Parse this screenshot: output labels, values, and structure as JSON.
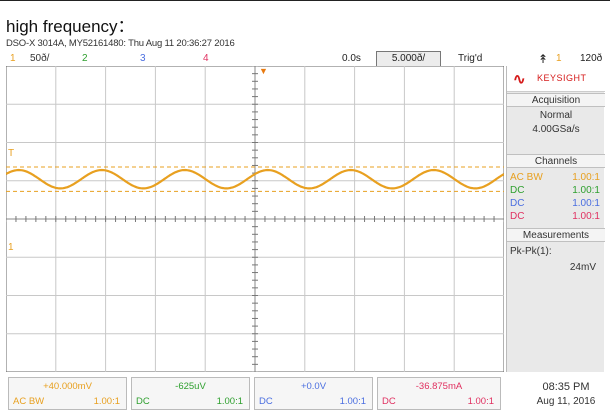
{
  "caption": "high frequency：",
  "info_line": "DSO-X 3014A, MY52161480: Thu Aug 11 20:36:27 2016",
  "header": {
    "channels": [
      {
        "num": "1",
        "scale": "50ð/",
        "color": "#e8a020"
      },
      {
        "num": "2",
        "scale": "",
        "color": "#2fa02f"
      },
      {
        "num": "3",
        "scale": "",
        "color": "#4a6ee0"
      },
      {
        "num": "4",
        "scale": "",
        "color": "#e03060"
      }
    ],
    "time_delay": "0.0s",
    "time_scale": "5.000ð/",
    "trig_status": "Trig'd",
    "trigger_icon": "trigger-edge-icon",
    "trig_channel": "1",
    "trig_level": "120ð"
  },
  "side_panel": {
    "brand": "KEYSIGHT",
    "acquisition_title": "Acquisition",
    "acq_mode": "Normal",
    "acq_rate": "4.00GSa/s",
    "channels_title": "Channels",
    "channel_rows": [
      {
        "coupling": "AC BW",
        "ratio": "1.00:1",
        "color": "#e8a020"
      },
      {
        "coupling": "DC",
        "ratio": "1.00:1",
        "color": "#2fa02f"
      },
      {
        "coupling": "DC",
        "ratio": "1.00:1",
        "color": "#4a6ee0"
      },
      {
        "coupling": "DC",
        "ratio": "1.00:1",
        "color": "#e03060"
      }
    ],
    "measurements_title": "Measurements",
    "meas_label": "Pk-Pk(1):",
    "meas_value": "24mV"
  },
  "bottom_channels": [
    {
      "offset": "+40.000mV",
      "coupling": "AC  BW",
      "ratio": "1.00:1",
      "color": "#e8a020"
    },
    {
      "offset": "-625uV",
      "coupling": "DC",
      "ratio": "1.00:1",
      "color": "#2fa02f"
    },
    {
      "offset": "+0.0V",
      "coupling": "DC",
      "ratio": "1.00:1",
      "color": "#4a6ee0"
    },
    {
      "offset": "-36.875mA",
      "coupling": "DC",
      "ratio": "1.00:1",
      "color": "#e03060"
    }
  ],
  "clock": {
    "time": "08:35 PM",
    "date": "Aug 11, 2016"
  },
  "waveform": {
    "channel": "1",
    "color": "#e8a020",
    "cycles": 6,
    "amplitude_mV": 12,
    "cursor_color": "#e8a020"
  }
}
